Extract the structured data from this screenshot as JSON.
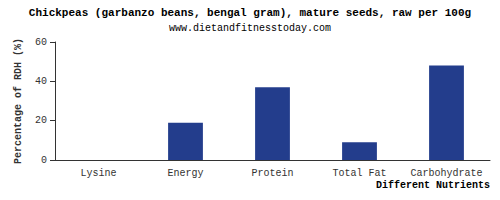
{
  "chart_data": {
    "type": "bar",
    "title": "Chickpeas (garbanzo beans, bengal gram), mature seeds, raw per 100g",
    "subtitle": "www.dietandfitnesstoday.com",
    "x_label": "Different Nutrients",
    "y_label": "Percentage of RDH (%)",
    "categories": [
      "Lysine",
      "Energy",
      "Protein",
      "Total Fat",
      "Carbohydrate"
    ],
    "values": [
      0,
      19,
      37,
      9,
      48
    ],
    "color": "#233d8c",
    "ylim": [
      0,
      60
    ],
    "yticks": [
      0,
      20,
      40,
      60
    ],
    "grid": false
  }
}
